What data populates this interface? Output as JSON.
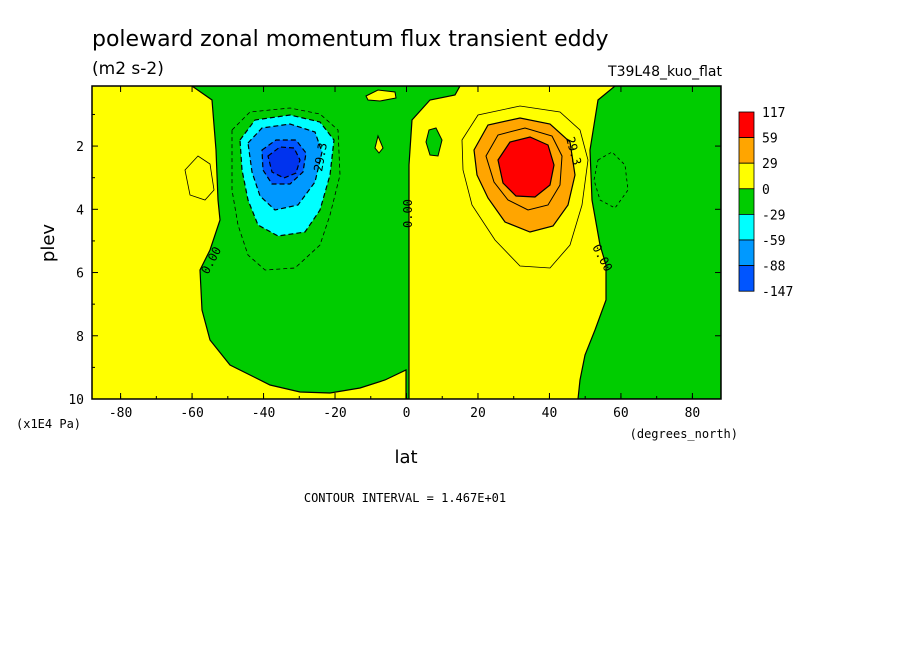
{
  "chart_data": {
    "type": "heatmap",
    "title": "poleward zonal momentum flux transient eddy",
    "units": "(m2 s-2)",
    "run_label": "T39L48_kuo_flat",
    "xlabel": "lat",
    "x_units": "(degrees_north)",
    "ylabel": "plev",
    "y_units": "(x1E4 Pa)",
    "xlim": [
      -88,
      88
    ],
    "ylim": [
      10,
      0.1
    ],
    "x_ticks": [
      -80,
      -60,
      -40,
      -20,
      0,
      20,
      40,
      60,
      80
    ],
    "x_tick_labels": [
      "-80",
      "-60",
      "-40",
      "-20",
      "0",
      "20",
      "40",
      "60",
      "80"
    ],
    "y_ticks": [
      2,
      4,
      6,
      8,
      10
    ],
    "y_tick_labels": [
      "2",
      "4",
      "6",
      "8",
      "10"
    ],
    "contour_interval_text": "CONTOUR INTERVAL = 1.467E+01",
    "contour_labels": [
      "0.00",
      "29.3",
      "0.00",
      "29.3",
      "0.00"
    ],
    "colorbar": {
      "levels": [
        "117",
        "59",
        "29",
        "0",
        "-29",
        "-59",
        "-88",
        "-147"
      ],
      "colors": [
        "#ff0000",
        "#ffa500",
        "#ffff00",
        "#00cc00",
        "#00ffff",
        "#0099ff",
        "#0055ff"
      ]
    },
    "features": [
      {
        "sign": "negative",
        "center_lat": -36,
        "center_plev": 2.5,
        "min_value": -147
      },
      {
        "sign": "positive",
        "center_lat": 34,
        "center_plev": 2.5,
        "max_value": 117
      }
    ]
  }
}
